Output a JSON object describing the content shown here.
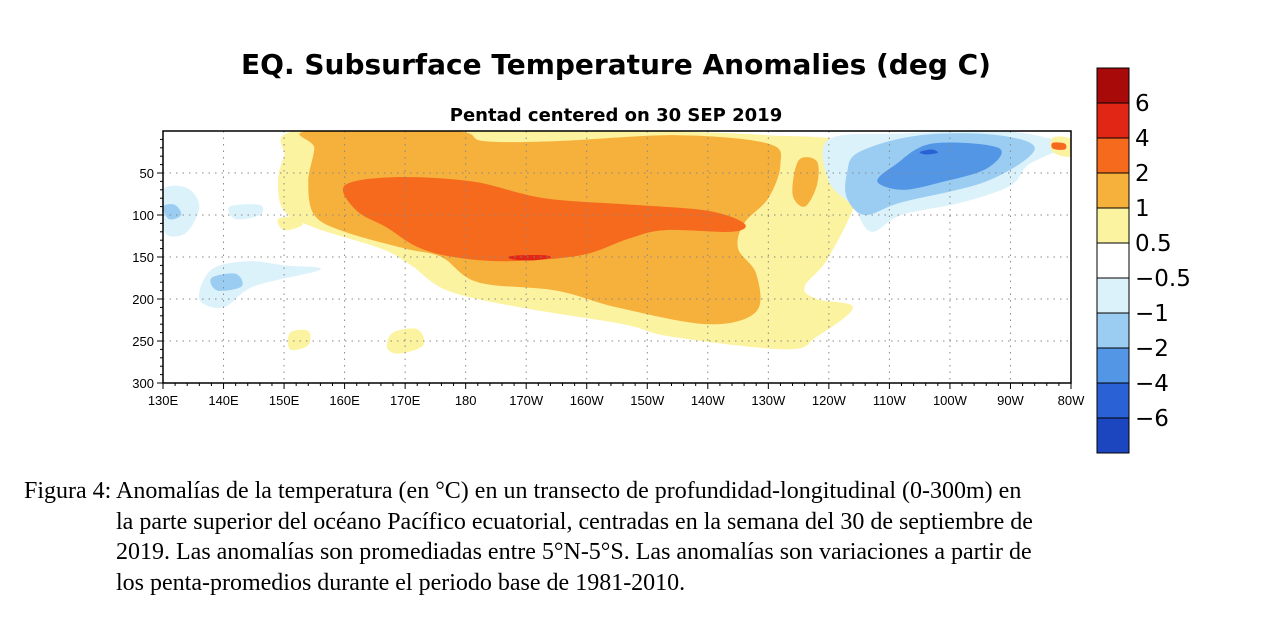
{
  "chart_data": {
    "type": "heatmap",
    "title": "EQ. Subsurface Temperature Anomalies (deg C)",
    "subtitle": "Pentad centered on 30 SEP 2019",
    "x_ticks": [
      "130E",
      "140E",
      "150E",
      "160E",
      "170E",
      "180",
      "170W",
      "160W",
      "150W",
      "140W",
      "130W",
      "120W",
      "110W",
      "100W",
      "90W",
      "80W"
    ],
    "x_range_degE": [
      130,
      280
    ],
    "y_ticks": [
      "50",
      "100",
      "150",
      "200",
      "250",
      "300"
    ],
    "y_range_m": [
      0,
      300
    ],
    "y_inverted": true,
    "grid": true,
    "colorbar": {
      "labels": [
        "6",
        "4",
        "2",
        "1",
        "0.5",
        "−0.5",
        "−1",
        "−2",
        "−4",
        "−6"
      ],
      "colors": [
        "#a80a0a",
        "#e12616",
        "#f66a1e",
        "#f6b03c",
        "#fcf3a0",
        "#ffffff",
        "#dcf2fb",
        "#9bcdf2",
        "#5396e6",
        "#2a62d6",
        "#1b46c0"
      ]
    },
    "anomaly_regions": [
      {
        "level": 0.5,
        "desc": "main warm envelope",
        "pts": [
          [
            152,
            0
          ],
          [
            178,
            0
          ],
          [
            200,
            0
          ],
          [
            212,
            0
          ],
          [
            230,
            5
          ],
          [
            243,
            15
          ],
          [
            245,
            70
          ],
          [
            240,
            150
          ],
          [
            236,
            185
          ],
          [
            238,
            200
          ],
          [
            244,
            210
          ],
          [
            238,
            245
          ],
          [
            233,
            260
          ],
          [
            214,
            245
          ],
          [
            206,
            230
          ],
          [
            189,
            210
          ],
          [
            177,
            190
          ],
          [
            171,
            160
          ],
          [
            166,
            140
          ],
          [
            155,
            115
          ],
          [
            150,
            95
          ],
          [
            149,
            60
          ],
          [
            150,
            30
          ]
        ]
      },
      {
        "level": 1,
        "desc": "warm core",
        "pts": [
          [
            154,
            0
          ],
          [
            178,
            0
          ],
          [
            183,
            12
          ],
          [
            195,
            12
          ],
          [
            215,
            5
          ],
          [
            230,
            15
          ],
          [
            232,
            40
          ],
          [
            230,
            80
          ],
          [
            226,
            110
          ],
          [
            225,
            140
          ],
          [
            228,
            170
          ],
          [
            228,
            215
          ],
          [
            220,
            230
          ],
          [
            205,
            210
          ],
          [
            195,
            190
          ],
          [
            182,
            180
          ],
          [
            176,
            150
          ],
          [
            170,
            140
          ],
          [
            160,
            120
          ],
          [
            155,
            100
          ],
          [
            154,
            60
          ],
          [
            155,
            20
          ]
        ]
      },
      {
        "level": 2,
        "desc": "core > 2C",
        "pts": [
          [
            160,
            65
          ],
          [
            168,
            55
          ],
          [
            181,
            60
          ],
          [
            193,
            80
          ],
          [
            208,
            88
          ],
          [
            220,
            95
          ],
          [
            226,
            110
          ],
          [
            224,
            120
          ],
          [
            213,
            118
          ],
          [
            207,
            128
          ],
          [
            199,
            148
          ],
          [
            187,
            155
          ],
          [
            178,
            150
          ],
          [
            172,
            138
          ],
          [
            167,
            115
          ],
          [
            162,
            95
          ]
        ]
      },
      {
        "level": 4,
        "desc": "max",
        "pts": [
          [
            187,
            150
          ],
          [
            189,
            148
          ],
          [
            193,
            148
          ],
          [
            194,
            151
          ],
          [
            191,
            154
          ],
          [
            188,
            153
          ]
        ]
      },
      {
        "level": 0.5,
        "desc": "130W patch",
        "pts": [
          [
            233,
            25
          ],
          [
            239,
            27
          ],
          [
            240,
            60
          ],
          [
            238,
            100
          ],
          [
            233,
            100
          ],
          [
            232,
            55
          ]
        ]
      },
      {
        "level": 1,
        "desc": "130W patch core",
        "pts": [
          [
            235,
            35
          ],
          [
            238,
            36
          ],
          [
            238,
            65
          ],
          [
            236,
            90
          ],
          [
            234,
            75
          ]
        ]
      },
      {
        "level": 0.5,
        "desc": "170E blob",
        "pts": [
          [
            168,
            240
          ],
          [
            172,
            236
          ],
          [
            173,
            255
          ],
          [
            169,
            265
          ],
          [
            167,
            258
          ]
        ]
      },
      {
        "level": 0.5,
        "desc": "150E blob",
        "pts": [
          [
            149,
            105
          ],
          [
            152,
            102
          ],
          [
            153,
            112
          ],
          [
            150,
            118
          ]
        ]
      },
      {
        "level": 0.5,
        "desc": "152E blob",
        "pts": [
          [
            151,
            240
          ],
          [
            154,
            238
          ],
          [
            154,
            255
          ],
          [
            151,
            260
          ]
        ]
      },
      {
        "level": -0.5,
        "desc": "east cool envelope",
        "pts": [
          [
            240,
            10
          ],
          [
            252,
            3
          ],
          [
            268,
            0
          ],
          [
            276,
            8
          ],
          [
            279,
            18
          ],
          [
            273,
            40
          ],
          [
            270,
            65
          ],
          [
            262,
            85
          ],
          [
            252,
            100
          ],
          [
            247,
            120
          ],
          [
            244,
            90
          ],
          [
            240,
            60
          ]
        ]
      },
      {
        "level": -1,
        "desc": "east cool",
        "pts": [
          [
            245,
            25
          ],
          [
            255,
            5
          ],
          [
            268,
            5
          ],
          [
            274,
            22
          ],
          [
            266,
            60
          ],
          [
            252,
            85
          ],
          [
            246,
            100
          ],
          [
            243,
            80
          ],
          [
            243,
            50
          ]
        ]
      },
      {
        "level": -2,
        "desc": "east cooler",
        "pts": [
          [
            251,
            40
          ],
          [
            257,
            15
          ],
          [
            268,
            20
          ],
          [
            266,
            45
          ],
          [
            258,
            62
          ],
          [
            252,
            70
          ],
          [
            248,
            60
          ]
        ]
      },
      {
        "level": -4,
        "desc": "east min",
        "pts": [
          [
            255,
            25
          ],
          [
            257,
            22
          ],
          [
            258,
            26
          ],
          [
            256,
            28
          ]
        ]
      },
      {
        "level": -0.5,
        "desc": "west cool 130E",
        "pts": [
          [
            130,
            70
          ],
          [
            134,
            68
          ],
          [
            136,
            90
          ],
          [
            134,
            120
          ],
          [
            131,
            125
          ],
          [
            130,
            110
          ]
        ]
      },
      {
        "level": -1,
        "desc": "west cool core",
        "pts": [
          [
            130,
            90
          ],
          [
            132,
            88
          ],
          [
            133,
            100
          ],
          [
            131,
            105
          ]
        ]
      },
      {
        "level": -0.5,
        "desc": "west cool 140E",
        "pts": [
          [
            138,
            165
          ],
          [
            144,
            155
          ],
          [
            150,
            160
          ],
          [
            156,
            165
          ],
          [
            145,
            185
          ],
          [
            140,
            210
          ],
          [
            136,
            200
          ]
        ]
      },
      {
        "level": -1,
        "desc": "west cool 140E core",
        "pts": [
          [
            138,
            175
          ],
          [
            142,
            170
          ],
          [
            143,
            185
          ],
          [
            139,
            190
          ]
        ]
      },
      {
        "level": -0.5,
        "desc": "west cool 143E",
        "pts": [
          [
            141,
            90
          ],
          [
            146,
            88
          ],
          [
            146,
            100
          ],
          [
            142,
            105
          ]
        ]
      },
      {
        "level": 0.5,
        "desc": "east edge blob",
        "pts": [
          [
            277,
            8
          ],
          [
            280,
            10
          ],
          [
            280,
            30
          ],
          [
            277,
            25
          ]
        ]
      },
      {
        "level": 2,
        "desc": "east edge hot",
        "pts": [
          [
            277,
            14
          ],
          [
            279,
            15
          ],
          [
            279,
            22
          ],
          [
            277,
            21
          ]
        ]
      }
    ]
  },
  "caption": {
    "line1": "Figura 4: Anomalías de la temperatura (en °C) en un transecto de profundidad-longitudinal (0-300m) en",
    "line2": "la parte superior del océano Pacífico ecuatorial, centradas en la semana del 30 de septiembre de",
    "line3": "2019. Las anomalías son promediadas entre 5°N-5°S. Las anomalías son variaciones a partir de",
    "line4": "los penta-promedios durante el periodo base de 1981-2010."
  }
}
